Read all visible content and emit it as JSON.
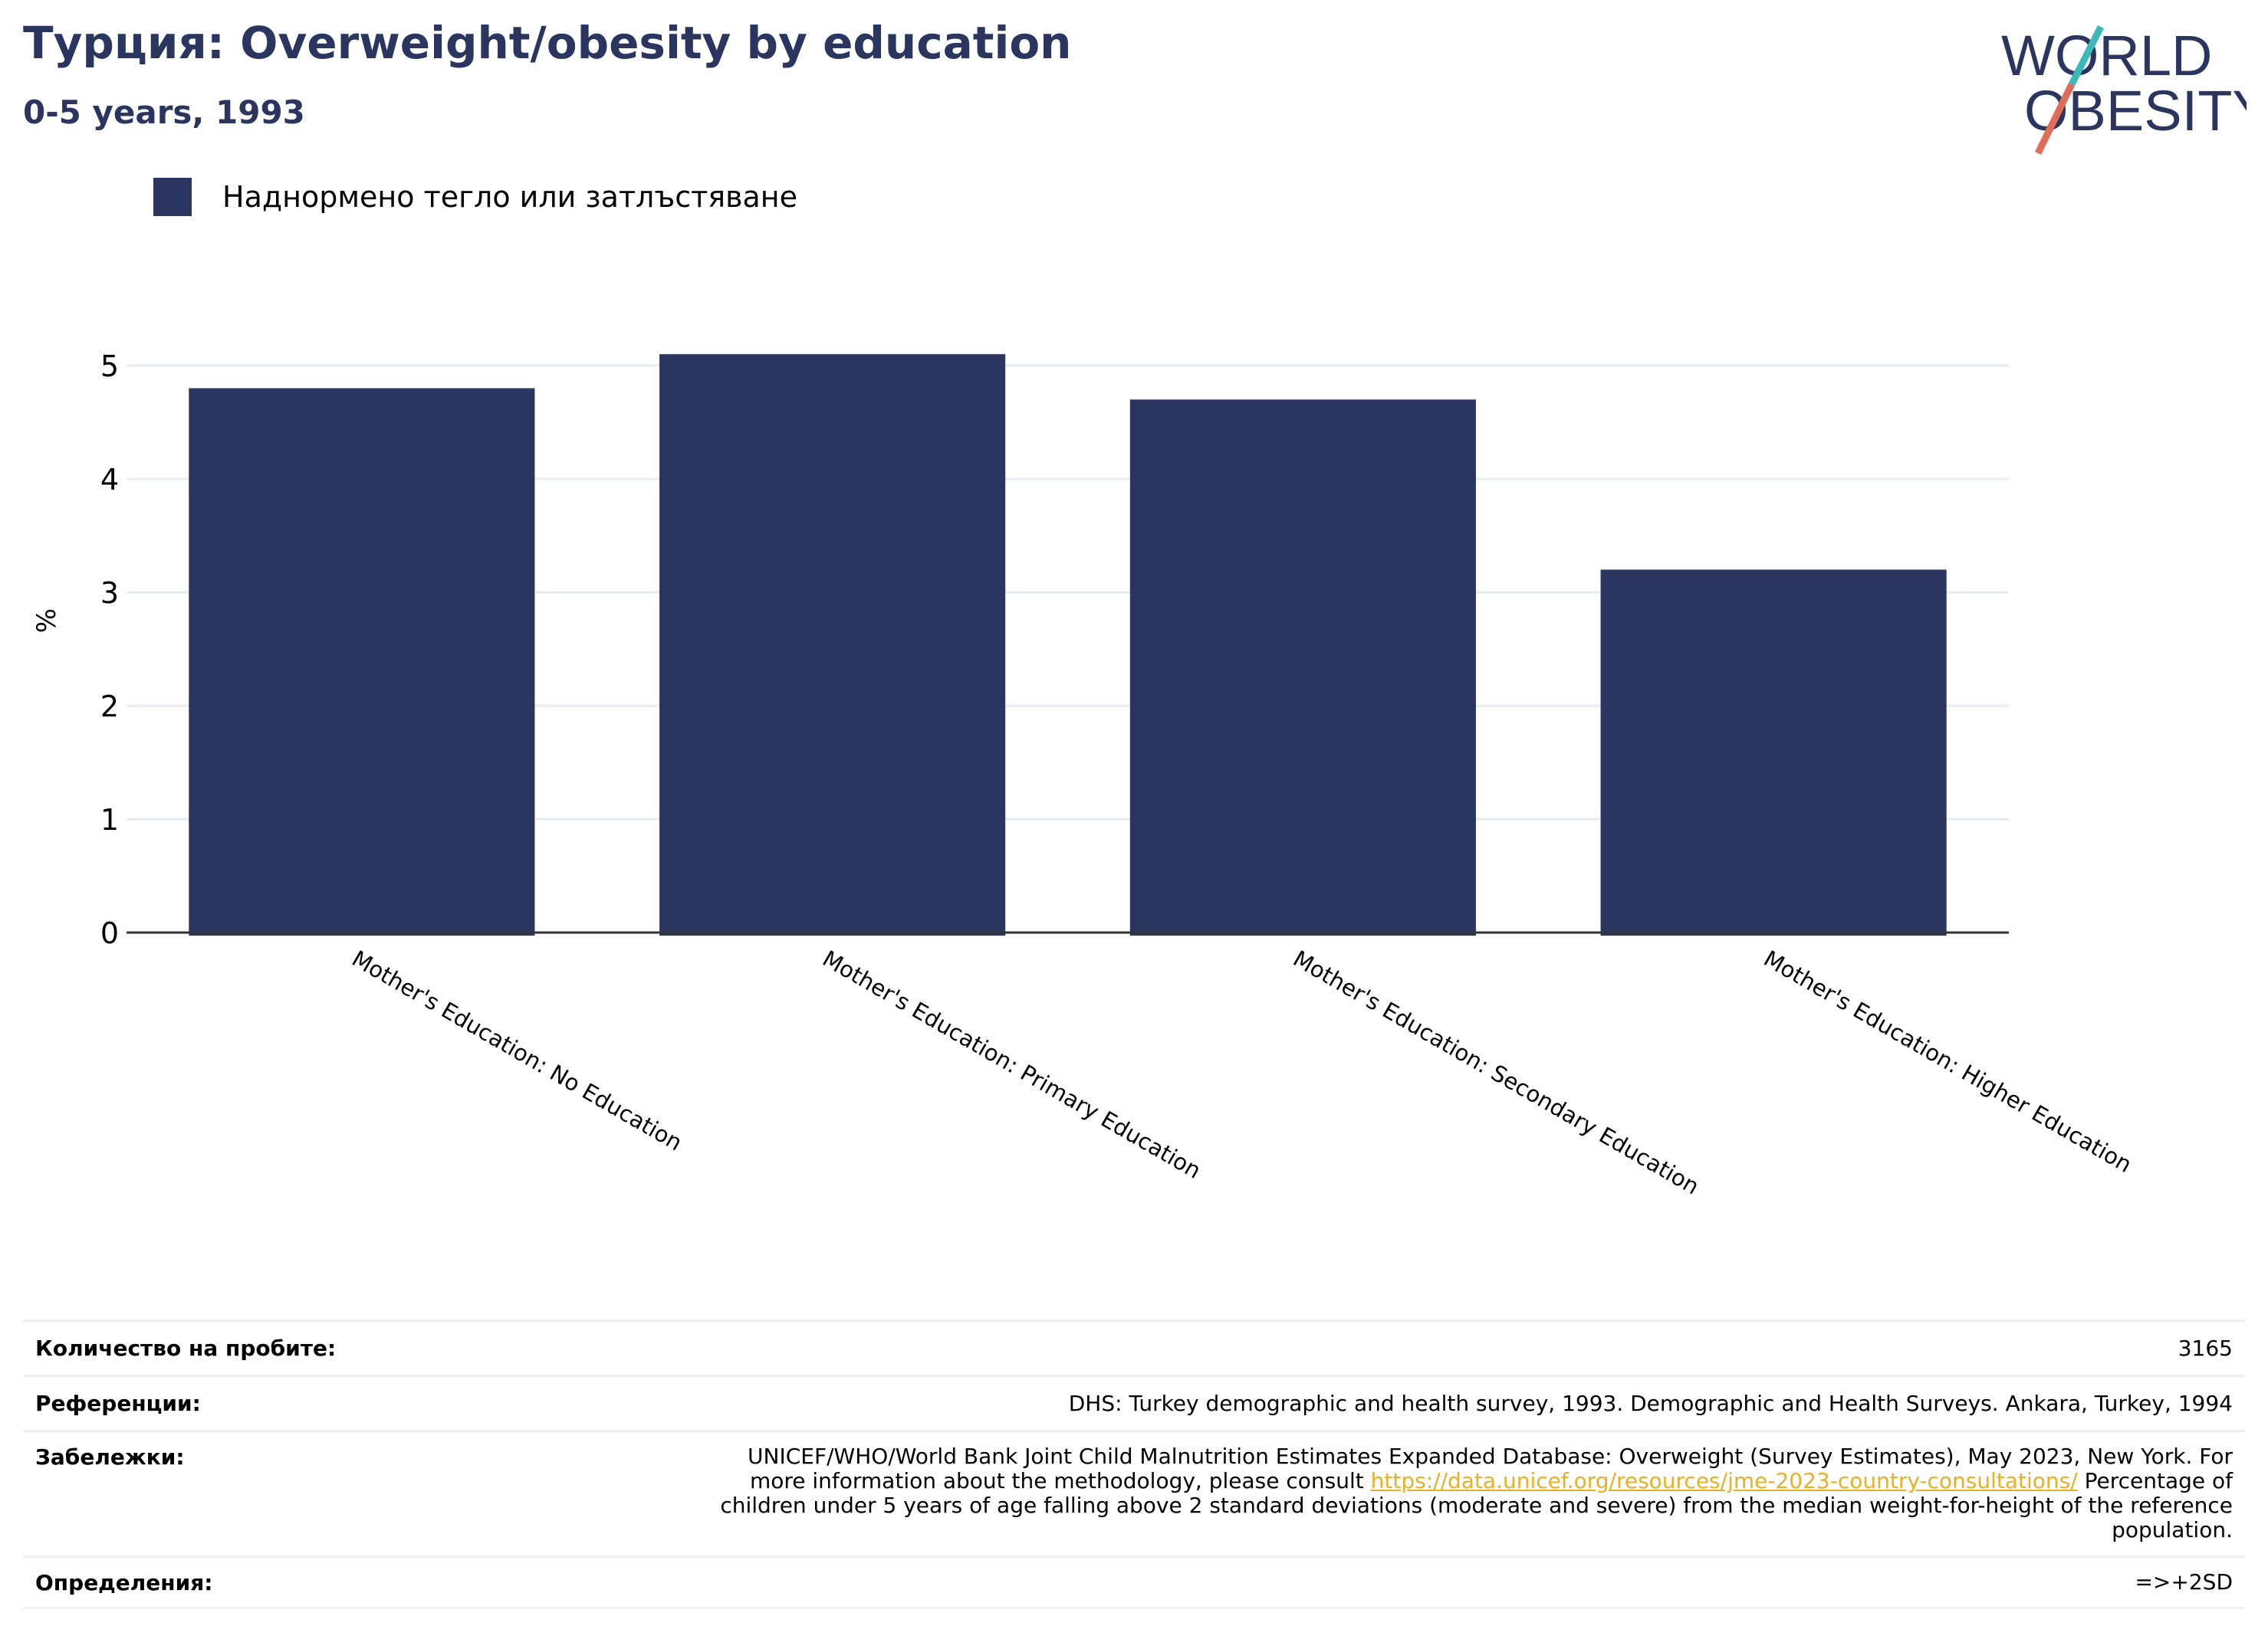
{
  "header": {
    "title": "Турция: Overweight/obesity by education",
    "subtitle": "0-5 years, 1993"
  },
  "logo": {
    "line1": "WORLD",
    "line2": "OBESITY"
  },
  "colors": {
    "bar": "#2a365f",
    "title": "#2a365f",
    "link": "#e8b025",
    "grid": "#e8ebef",
    "axis": "#333333"
  },
  "chart_data": {
    "type": "bar",
    "categories": [
      "Mother's Education: No Education",
      "Mother's Education: Primary Education",
      "Mother's Education: Secondary Education",
      "Mother's Education: Higher Education"
    ],
    "series": [
      {
        "name": "Наднормено тегло или затлъстяване",
        "values": [
          4.8,
          5.1,
          4.7,
          3.2
        ]
      }
    ],
    "ylabel": "%",
    "ylim": [
      0,
      5.5
    ],
    "yticks": [
      0,
      1,
      2,
      3,
      4,
      5
    ],
    "grid": true,
    "legend_position": "top-left"
  },
  "footer": {
    "sample_label": "Количество на пробите:",
    "sample_value": "3165",
    "references_label": "Референции:",
    "references_value": "DHS: Turkey demographic and health survey, 1993. Demographic and Health Surveys. Ankara, Turkey, 1994",
    "notes_label": "Забележки:",
    "notes_line1": "UNICEF/WHO/World Bank Joint Child Malnutrition Estimates Expanded Database: Overweight (Survey Estimates), May 2023, New York. For",
    "notes_line2_pre": "more information about the methodology, please consult ",
    "notes_link": "https://data.unicef.org/resources/jme-2023-country-consultations/",
    "notes_line2_post": " Percentage of",
    "notes_line3": "children under 5 years of age falling above 2 standard deviations (moderate and severe) from the median weight-for-height of the reference",
    "notes_line4": "population.",
    "definitions_label": "Определения:",
    "definitions_value": "=>+2SD"
  }
}
